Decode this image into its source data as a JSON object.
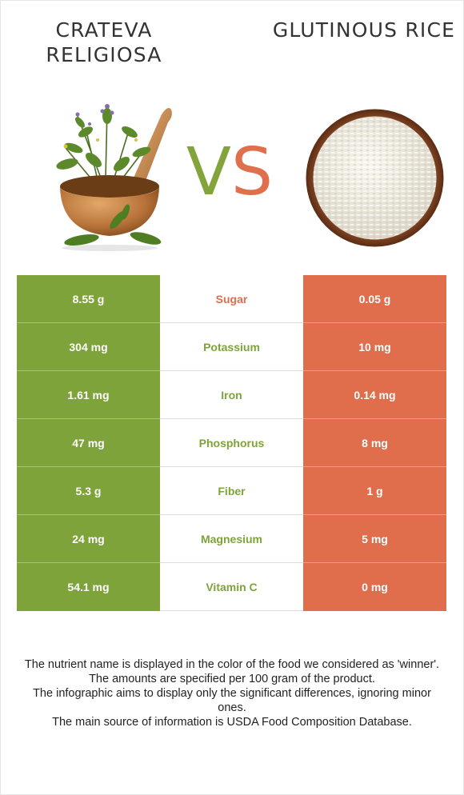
{
  "left_food": {
    "name": "Crateva religiosa",
    "name_display": "CRATEVA RELIGIOSA",
    "color": "#7ea33a"
  },
  "right_food": {
    "name": "Glutinous rice",
    "name_display": "GLUTINOUS RICE",
    "color": "#e06d4c"
  },
  "vs": {
    "v": "V",
    "s": "S"
  },
  "colors": {
    "left_winner": "#7ea33a",
    "right_winner": "#e06d4c"
  },
  "rows": [
    {
      "nutrient": "Sugar",
      "left": "8.55 g",
      "right": "0.05 g",
      "winner": "right"
    },
    {
      "nutrient": "Potassium",
      "left": "304 mg",
      "right": "10 mg",
      "winner": "left"
    },
    {
      "nutrient": "Iron",
      "left": "1.61 mg",
      "right": "0.14 mg",
      "winner": "left"
    },
    {
      "nutrient": "Phosphorus",
      "left": "47 mg",
      "right": "8 mg",
      "winner": "left"
    },
    {
      "nutrient": "Fiber",
      "left": "5.3 g",
      "right": "1 g",
      "winner": "left"
    },
    {
      "nutrient": "Magnesium",
      "left": "24 mg",
      "right": "5 mg",
      "winner": "left"
    },
    {
      "nutrient": "Vitamin C",
      "left": "54.1 mg",
      "right": "0 mg",
      "winner": "left"
    }
  ],
  "footer": [
    "The nutrient name is displayed in the color of the food we considered as 'winner'.",
    "The amounts are specified per 100 gram of the product.",
    "The infographic aims to display only the significant differences, ignoring minor ones.",
    "The main source of information is USDA Food Composition Database."
  ]
}
